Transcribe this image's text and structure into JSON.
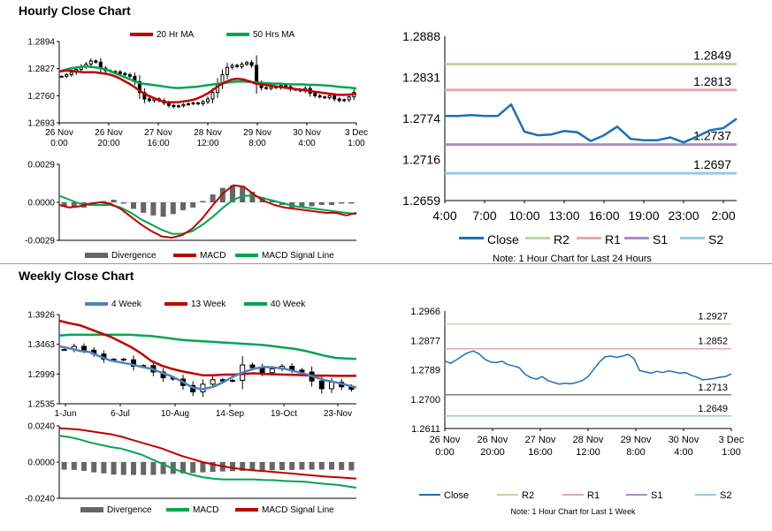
{
  "sections": {
    "hourly_title": "Hourly Close Chart",
    "weekly_title": "Weekly Close Chart"
  },
  "colors": {
    "ma20": "#c00000",
    "ma50": "#00a651",
    "candle": "#000000",
    "macd": "#c00000",
    "signal": "#00a651",
    "divergence": "#666666",
    "close": "#1f6fb4",
    "r2": "#c3d69b",
    "r1": "#e6a9a9",
    "s1": "#a88fc2",
    "s2": "#92cddc",
    "w4": "#4f81bd",
    "w13": "#c00000",
    "w40": "#00a651"
  },
  "chart_data": [
    {
      "id": "hourly-price",
      "type": "candlestick",
      "legend": [
        "20 Hr MA",
        "50 Hrs MA"
      ],
      "y_ticks": [
        "1.2894",
        "1.2827",
        "1.2760",
        "1.2693"
      ],
      "ylim": [
        1.2693,
        1.2894
      ],
      "x_ticks": [
        [
          "26 Nov",
          "0:00"
        ],
        [
          "26 Nov",
          "20:00"
        ],
        [
          "27 Nov",
          "16:00"
        ],
        [
          "28 Nov",
          "12:00"
        ],
        [
          "29 Nov",
          "8:00"
        ],
        [
          "30 Nov",
          "4:00"
        ],
        [
          "3 Dec",
          "1:00"
        ]
      ],
      "close": [
        1.2808,
        1.2812,
        1.2818,
        1.2825,
        1.2832,
        1.2838,
        1.2846,
        1.2843,
        1.2828,
        1.2822,
        1.282,
        1.2819,
        1.2815,
        1.2812,
        1.2808,
        1.2795,
        1.2768,
        1.2752,
        1.2748,
        1.2752,
        1.2748,
        1.2742,
        1.2736,
        1.2733,
        1.2735,
        1.2738,
        1.274,
        1.2742,
        1.274,
        1.2745,
        1.2752,
        1.2768,
        1.279,
        1.2812,
        1.283,
        1.2835,
        1.2832,
        1.2838,
        1.2842,
        1.2835,
        1.279,
        1.278,
        1.2778,
        1.2782,
        1.278,
        1.2785,
        1.2782,
        1.2776,
        1.2775,
        1.2772,
        1.2778,
        1.2766,
        1.276,
        1.2757,
        1.2755,
        1.276,
        1.2752,
        1.2748,
        1.275,
        1.2757,
        1.2768
      ],
      "ma20": [
        1.282,
        1.2822,
        1.2822,
        1.282,
        1.2818,
        1.2818,
        1.2818,
        1.2816,
        1.2814,
        1.281,
        1.2804,
        1.2796,
        1.2788,
        1.2778,
        1.2768,
        1.276,
        1.2754,
        1.2748,
        1.2744,
        1.2744,
        1.2744,
        1.2746,
        1.2748,
        1.2752,
        1.2758,
        1.2766,
        1.2776,
        1.2786,
        1.2794,
        1.28,
        1.2802,
        1.28,
        1.2796,
        1.279,
        1.2788,
        1.2786,
        1.2784,
        1.2782,
        1.278,
        1.2778,
        1.2776,
        1.2774,
        1.2772,
        1.277,
        1.2768,
        1.2766,
        1.2764,
        1.2762,
        1.2762,
        1.2763,
        1.2765
      ],
      "ma50": [
        1.282,
        1.2824,
        1.2828,
        1.283,
        1.2832,
        1.2832,
        1.283,
        1.2828,
        1.2824,
        1.2818,
        1.2812,
        1.2806,
        1.28,
        1.2794,
        1.279,
        1.2788,
        1.2786,
        1.2784,
        1.2782,
        1.278,
        1.2779,
        1.278,
        1.2781,
        1.2782,
        1.2784,
        1.2786,
        1.2788,
        1.279,
        1.2792,
        1.2794,
        1.2795,
        1.2795,
        1.2794,
        1.2793,
        1.2792,
        1.2791,
        1.279,
        1.279,
        1.2789,
        1.2788,
        1.2788,
        1.2788,
        1.2787,
        1.2787,
        1.2786,
        1.2785,
        1.2784,
        1.2782,
        1.2781,
        1.278,
        1.2778
      ]
    },
    {
      "id": "hourly-macd",
      "type": "macd",
      "legend": [
        "Divergence",
        "MACD",
        "MACD Signal Line"
      ],
      "y_ticks": [
        "0.0029",
        "0.0000",
        "-0.0029"
      ],
      "ylim": [
        -0.0029,
        0.0029
      ],
      "macd": [
        -0.0002,
        -0.0004,
        -0.0003,
        -0.0001,
        0.0,
        -0.0001,
        -0.0005,
        -0.0011,
        -0.0017,
        -0.0022,
        -0.0026,
        -0.0027,
        -0.0025,
        -0.002,
        -0.0012,
        -0.0002,
        0.0007,
        0.0013,
        0.0012,
        0.0006,
        0.0001,
        -0.0002,
        -0.0004,
        -0.0005,
        -0.0006,
        -0.0007,
        -0.0008,
        -0.0008,
        -0.001,
        -0.0008
      ],
      "signal": [
        0.0005,
        0.0002,
        -0.0001,
        -0.0002,
        -0.0002,
        -0.0002,
        -0.0004,
        -0.0008,
        -0.0013,
        -0.0017,
        -0.0021,
        -0.0024,
        -0.0024,
        -0.0022,
        -0.0017,
        -0.0011,
        -0.0004,
        0.0002,
        0.0005,
        0.0005,
        0.0003,
        0.0001,
        -0.0001,
        -0.0003,
        -0.0004,
        -0.0005,
        -0.0006,
        -0.0007,
        -0.0008,
        -0.0009
      ],
      "divergence": [
        -0.0003,
        -0.0004,
        -0.0004,
        -0.0002,
        0.0001,
        0.0002,
        -0.0001,
        -0.0005,
        -0.0008,
        -0.001,
        -0.0011,
        -0.0009,
        -0.0006,
        -0.0004,
        0.0001,
        0.0006,
        0.0011,
        0.0013,
        0.0012,
        0.0008,
        0.0004,
        0.0001,
        -0.0002,
        -0.0004,
        -0.0004,
        -0.0003,
        -0.0002,
        -0.0002,
        -0.0001,
        -0.0001
      ]
    },
    {
      "id": "hourly-pivots",
      "type": "line",
      "y_ticks": [
        "1.2888",
        "1.2831",
        "1.2774",
        "1.2716",
        "1.2659"
      ],
      "ylim": [
        1.2659,
        1.2888
      ],
      "x_ticks": [
        "4:00",
        "7:00",
        "10:00",
        "13:00",
        "16:00",
        "19:00",
        "23:00",
        "2:00"
      ],
      "close": [
        1.2777,
        1.2777,
        1.2778,
        1.2777,
        1.2777,
        1.2793,
        1.2755,
        1.275,
        1.2751,
        1.2756,
        1.2754,
        1.2742,
        1.275,
        1.2762,
        1.2745,
        1.2743,
        1.2743,
        1.2747,
        1.274,
        1.2748,
        1.2757,
        1.276,
        1.2773
      ],
      "levels": {
        "R2": 1.2849,
        "R1": 1.2813,
        "S1": 1.2737,
        "S2": 1.2697
      },
      "level_labels": {
        "R2": "1.2849",
        "R1": "1.2813",
        "S1": "1.2737",
        "S2": "1.2697"
      },
      "legend": [
        "Close",
        "R2",
        "R1",
        "S1",
        "S2"
      ],
      "note": "Note: 1 Hour Chart for Last 24 Hours"
    },
    {
      "id": "weekly-price",
      "type": "candlestick",
      "legend": [
        "4 Week",
        "13 Week",
        "40 Week"
      ],
      "y_ticks": [
        "1.3926",
        "1.3463",
        "1.2999",
        "1.2535"
      ],
      "ylim": [
        1.2535,
        1.3926
      ],
      "x_ticks": [
        "1-Jun",
        "6-Jul",
        "10-Aug",
        "14-Sep",
        "19-Oct",
        "23-Nov"
      ],
      "close": [
        1.338,
        1.343,
        1.337,
        1.331,
        1.323,
        1.323,
        1.322,
        1.312,
        1.313,
        1.303,
        1.294,
        1.292,
        1.282,
        1.272,
        1.284,
        1.291,
        1.289,
        1.29,
        1.314,
        1.31,
        1.302,
        1.308,
        1.312,
        1.306,
        1.303,
        1.289,
        1.277,
        1.287,
        1.28,
        1.276
      ],
      "w4": [
        1.343,
        1.34,
        1.336,
        1.334,
        1.327,
        1.321,
        1.318,
        1.315,
        1.311,
        1.308,
        1.302,
        1.296,
        1.288,
        1.279,
        1.276,
        1.28,
        1.287,
        1.296,
        1.303,
        1.308,
        1.311,
        1.31,
        1.308,
        1.304,
        1.3,
        1.295,
        1.29,
        1.287,
        1.283,
        1.279
      ],
      "w13": [
        1.383,
        1.379,
        1.376,
        1.37,
        1.364,
        1.358,
        1.35,
        1.342,
        1.332,
        1.32,
        1.313,
        1.308,
        1.304,
        1.301,
        1.298,
        1.298,
        1.299,
        1.299,
        1.3,
        1.301,
        1.3,
        1.2995,
        1.299,
        1.2985,
        1.298,
        1.2975,
        1.2975,
        1.297,
        1.297,
        1.297
      ],
      "w40": [
        1.36,
        1.361,
        1.361,
        1.361,
        1.361,
        1.361,
        1.361,
        1.361,
        1.36,
        1.359,
        1.357,
        1.355,
        1.353,
        1.352,
        1.351,
        1.35,
        1.349,
        1.348,
        1.347,
        1.346,
        1.345,
        1.343,
        1.341,
        1.339,
        1.336,
        1.332,
        1.328,
        1.325,
        1.324,
        1.3235
      ]
    },
    {
      "id": "weekly-macd",
      "type": "macd",
      "legend": [
        "Divergence",
        "MACD",
        "MACD Signal Line"
      ],
      "y_ticks": [
        "0.0240",
        "0.0000",
        "-0.0240"
      ],
      "ylim": [
        -0.024,
        0.024
      ],
      "macd": [
        0.0175,
        0.0165,
        0.015,
        0.013,
        0.0115,
        0.01,
        0.009,
        0.007,
        0.005,
        0.002,
        -0.001,
        -0.004,
        -0.0065,
        -0.0085,
        -0.01,
        -0.011,
        -0.0115,
        -0.0115,
        -0.0115,
        -0.0115,
        -0.0118,
        -0.012,
        -0.0125,
        -0.0128,
        -0.013,
        -0.0138,
        -0.0145,
        -0.015,
        -0.016,
        -0.017
      ],
      "signal": [
        0.0225,
        0.022,
        0.0215,
        0.0205,
        0.0195,
        0.0185,
        0.017,
        0.015,
        0.013,
        0.011,
        0.009,
        0.0065,
        0.004,
        0.002,
        0.0,
        -0.0015,
        -0.0028,
        -0.004,
        -0.0048,
        -0.0055,
        -0.006,
        -0.0066,
        -0.0072,
        -0.0078,
        -0.0084,
        -0.009,
        -0.0096,
        -0.01,
        -0.0105,
        -0.011
      ],
      "divergence": [
        -0.005,
        -0.0052,
        -0.0058,
        -0.0068,
        -0.0075,
        -0.0083,
        -0.0085,
        -0.0085,
        -0.0085,
        -0.0085,
        -0.008,
        -0.0078,
        -0.0075,
        -0.0072,
        -0.0068,
        -0.0065,
        -0.0062,
        -0.006,
        -0.0058,
        -0.0055,
        -0.0055,
        -0.0054,
        -0.0053,
        -0.0052,
        -0.005,
        -0.005,
        -0.005,
        -0.005,
        -0.0052,
        -0.0055
      ]
    },
    {
      "id": "weekly-pivots",
      "type": "line",
      "y_ticks": [
        "1.2966",
        "1.2877",
        "1.2789",
        "1.2700",
        "1.2611"
      ],
      "ylim": [
        1.2611,
        1.2966
      ],
      "x_ticks": [
        [
          "26 Nov",
          "0:00"
        ],
        [
          "26 Nov",
          "20:00"
        ],
        [
          "27 Nov",
          "16:00"
        ],
        [
          "28 Nov",
          "12:00"
        ],
        [
          "29 Nov",
          "8:00"
        ],
        [
          "30 Nov",
          "4:00"
        ],
        [
          "3 Dec",
          "1:00"
        ]
      ],
      "close": [
        1.2815,
        1.2808,
        1.2818,
        1.283,
        1.284,
        1.2845,
        1.2836,
        1.282,
        1.2812,
        1.281,
        1.2814,
        1.2804,
        1.28,
        1.2795,
        1.2775,
        1.2765,
        1.276,
        1.2768,
        1.2756,
        1.275,
        1.2745,
        1.2748,
        1.2746,
        1.275,
        1.2756,
        1.2768,
        1.279,
        1.2812,
        1.2828,
        1.283,
        1.2826,
        1.283,
        1.2835,
        1.2823,
        1.2786,
        1.2782,
        1.2778,
        1.2784,
        1.278,
        1.2785,
        1.2782,
        1.2778,
        1.278,
        1.2772,
        1.2766,
        1.2758,
        1.276,
        1.2762,
        1.2766,
        1.2768,
        1.2776
      ],
      "levels": {
        "R2": 1.2927,
        "R1": 1.2852,
        "S1": 1.2713,
        "S2": 1.2649
      },
      "level_labels": {
        "R2": "1.2927",
        "R1": "1.2852",
        "S1": "1.2713",
        "S2": "1.2649"
      },
      "legend": [
        "Close",
        "R2",
        "R1",
        "S1",
        "S2"
      ],
      "note": "Note: 1 Hour Chart for Last 1 Week"
    }
  ]
}
